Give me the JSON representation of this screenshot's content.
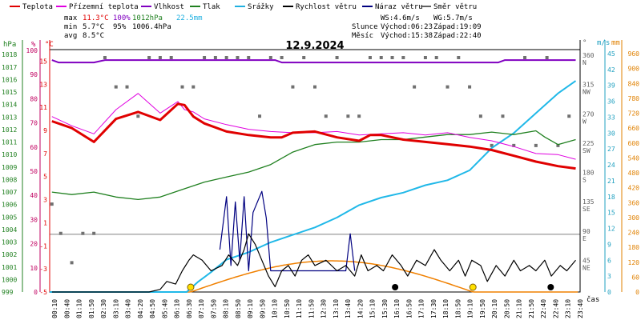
{
  "chart_data": {
    "type": "line",
    "title": "12.9.2024",
    "legend": [
      {
        "name": "Teplota",
        "color": "#e00000"
      },
      {
        "name": "Přízemní teplota",
        "color": "#e000e0"
      },
      {
        "name": "Vlhkost",
        "color": "#8000c0"
      },
      {
        "name": "Tlak",
        "color": "#208020"
      },
      {
        "name": "Srážky",
        "color": "#20b0e0"
      },
      {
        "name": "Rychlost větru",
        "color": "#000000"
      },
      {
        "name": "Náraz větru",
        "color": "#000080"
      },
      {
        "name": "Směr větru",
        "color": "#606060"
      }
    ],
    "stats": {
      "row_max": {
        "label": "max",
        "temp": "11.3°C",
        "hum": "100%",
        "pres": "1012hPa",
        "rain": "22.5mm"
      },
      "row_min": {
        "label": "min",
        "temp": "5.7°C",
        "hum": "95%",
        "pres": "1006.4hPa"
      },
      "row_avg": {
        "label": "avg",
        "temp": "8.5°C"
      },
      "wind": {
        "ws": "WS:4.6m/s",
        "wg": "WG:5.7m/s"
      },
      "sun": {
        "label": "Slunce",
        "rise": "Východ:06:23",
        "set": "Západ:19:09"
      },
      "moon": {
        "label": "Měsíc",
        "rise": "Východ:15:38",
        "set": "Západ:22:40"
      }
    },
    "axes": {
      "hpa": {
        "unit": "hPa",
        "ticks": [
          "1018",
          "1017",
          "1016",
          "1015",
          "1014",
          "1013",
          "1012",
          "1011",
          "1010",
          "1009",
          "1008",
          "1007",
          "1006",
          "1005",
          "1004",
          "1003",
          "1002",
          "1001",
          "1000",
          "999"
        ]
      },
      "pct": {
        "unit": "%",
        "ticks": [
          "100",
          "90",
          "80",
          "70",
          "60",
          "50",
          "40",
          "30",
          "20",
          "10",
          "0"
        ]
      },
      "degc": {
        "unit": "°C",
        "ticks": [
          "15",
          "13",
          "11",
          "9",
          "7",
          "5",
          "3",
          "1",
          "-1",
          "-3",
          "-5"
        ]
      },
      "dir": {
        "unit": "°",
        "ticks": [
          {
            "deg": "360",
            "name": "N"
          },
          {
            "deg": "315",
            "name": "NW"
          },
          {
            "deg": "270",
            "name": "W"
          },
          {
            "deg": "225",
            "name": "SW"
          },
          {
            "deg": "180",
            "name": "S"
          },
          {
            "deg": "135",
            "name": "SE"
          },
          {
            "deg": "90",
            "name": "E"
          },
          {
            "deg": "45",
            "name": "NE"
          }
        ]
      },
      "ms": {
        "unit": "m/s",
        "ticks": [
          "45",
          "42",
          "39",
          "36",
          "33",
          "30",
          "27",
          "24",
          "21",
          "18",
          "15",
          "12",
          "9",
          "6",
          "3",
          "0"
        ]
      },
      "mm": {
        "unit": "mm",
        "ticks": [
          "960",
          "900",
          "840",
          "780",
          "720",
          "660",
          "600",
          "540",
          "480",
          "420",
          "360",
          "300",
          "240",
          "180",
          "120",
          "60",
          "0"
        ]
      },
      "time": {
        "unit": "čas",
        "ticks": [
          "00:10",
          "00:40",
          "01:10",
          "01:50",
          "02:30",
          "03:10",
          "03:40",
          "04:20",
          "04:50",
          "05:40",
          "06:10",
          "06:30",
          "07:10",
          "07:50",
          "08:10",
          "08:50",
          "09:10",
          "09:50",
          "10:10",
          "10:50",
          "11:10",
          "11:50",
          "12:30",
          "13:10",
          "13:40",
          "14:20",
          "15:10",
          "15:30",
          "16:10",
          "16:50",
          "17:10",
          "17:30",
          "18:10",
          "18:50",
          "19:10",
          "19:50",
          "20:10",
          "20:50",
          "21:10",
          "21:50",
          "22:40",
          "22:40",
          "23:10",
          "23:40"
        ]
      }
    },
    "ylim_temp": [
      -5,
      16
    ],
    "series": [
      {
        "name": "Teplota",
        "unit": "°C",
        "x": [
          0.1,
          1,
          2,
          3,
          4,
          5,
          5.8,
          6.1,
          6.5,
          7,
          8,
          9,
          10,
          10.5,
          11,
          12,
          13,
          14,
          14.5,
          15,
          16,
          17,
          18,
          19,
          20,
          21,
          22,
          22.5,
          23,
          23.8
        ],
        "y": [
          9.8,
          9.2,
          8.0,
          10.0,
          10.6,
          9.9,
          11.3,
          11.2,
          10.2,
          9.6,
          8.9,
          8.6,
          8.4,
          8.4,
          8.8,
          8.9,
          8.4,
          8.1,
          8.6,
          8.6,
          8.2,
          8.0,
          7.8,
          7.6,
          7.3,
          6.8,
          6.3,
          6.1,
          5.9,
          5.7
        ]
      },
      {
        "name": "Přízemní teplota",
        "unit": "°C",
        "x": [
          0.1,
          1,
          2,
          3,
          4,
          5,
          5.8,
          6.1,
          6.5,
          7,
          8,
          9,
          10,
          11,
          12,
          13,
          14,
          15,
          16,
          17,
          18,
          19,
          20,
          21,
          22,
          23,
          23.8
        ],
        "y": [
          10.2,
          9.4,
          8.7,
          10.8,
          12.2,
          10.5,
          11.5,
          10.8,
          10.6,
          10.0,
          9.5,
          9.1,
          8.9,
          8.8,
          8.8,
          8.9,
          8.6,
          8.7,
          8.8,
          8.6,
          8.8,
          8.4,
          8.1,
          7.6,
          7.0,
          6.9,
          6.5
        ]
      },
      {
        "name": "Vlhkost",
        "unit": "%",
        "x": [
          0.1,
          0.4,
          2,
          2.5,
          4,
          4.2,
          10.2,
          10.5,
          20.3,
          20.6,
          23.8
        ],
        "y": [
          96,
          95,
          95,
          96,
          96,
          96,
          96,
          95,
          95,
          96,
          96
        ]
      },
      {
        "name": "Tlak",
        "unit": "hPa",
        "x": [
          0.1,
          1,
          2,
          3,
          4,
          5,
          6,
          7,
          8,
          9,
          10,
          11,
          12,
          13,
          14,
          15,
          16,
          17,
          18,
          19,
          20,
          21,
          22,
          22.4,
          23,
          23.8
        ],
        "y": [
          1007.0,
          1006.8,
          1007.0,
          1006.6,
          1006.4,
          1006.6,
          1007.2,
          1007.8,
          1008.2,
          1008.6,
          1009.2,
          1010.2,
          1010.8,
          1011.0,
          1011.0,
          1011.2,
          1011.2,
          1011.4,
          1011.6,
          1011.6,
          1011.8,
          1011.6,
          1011.9,
          1011.4,
          1010.8,
          1011.2
        ]
      },
      {
        "name": "Srážky",
        "unit": "mm",
        "x": [
          0,
          6.2,
          6.7,
          7.3,
          8,
          9,
          10,
          11,
          12,
          13,
          14,
          15,
          16,
          17,
          18,
          19,
          20,
          21,
          22,
          23,
          23.8
        ],
        "y": [
          0,
          0,
          40,
          80,
          130,
          160,
          200,
          230,
          260,
          300,
          350,
          380,
          400,
          430,
          450,
          490,
          580,
          640,
          720,
          800,
          850
        ]
      },
      {
        "name": "Rychlost větru",
        "unit": "m/s",
        "x": [
          0.1,
          4.5,
          5,
          5.3,
          5.7,
          6.0,
          6.3,
          6.5,
          6.9,
          7.3,
          7.8,
          8.1,
          8.5,
          8.8,
          9.0,
          9.3,
          9.6,
          9.9,
          10.2,
          10.5,
          10.8,
          11.1,
          11.4,
          11.7,
          12,
          12.5,
          13,
          13.4,
          13.8,
          14.1,
          14.4,
          14.8,
          15.1,
          15.5,
          15.9,
          16.2,
          16.6,
          17,
          17.4,
          17.7,
          18.1,
          18.5,
          18.8,
          19.1,
          19.5,
          19.8,
          20.2,
          20.6,
          21,
          21.3,
          21.7,
          22,
          22.4,
          22.7,
          23.1,
          23.4,
          23.8
        ],
        "y": [
          0,
          0,
          0.5,
          2,
          1.5,
          4,
          6,
          7,
          6,
          4,
          5,
          7,
          5,
          8,
          11,
          9,
          6,
          3,
          1,
          4,
          5,
          3,
          6,
          7,
          5,
          6,
          4,
          5,
          3,
          7,
          4,
          5,
          4,
          7,
          5,
          3,
          6,
          5,
          8,
          6,
          4,
          6,
          3,
          6,
          5,
          2,
          5,
          3,
          6,
          4,
          5,
          4,
          6,
          3,
          5,
          4,
          6
        ]
      },
      {
        "name": "Náraz větru",
        "unit": "m/s",
        "x": [
          7.7,
          8.0,
          8.2,
          8.4,
          8.6,
          8.8,
          9.0,
          9.2,
          9.4,
          9.6,
          9.8,
          10.0,
          13.4,
          13.6,
          13.8
        ],
        "y": [
          8,
          18,
          5,
          17,
          6,
          18,
          4,
          15,
          17,
          19,
          14,
          4,
          4,
          11,
          4
        ]
      },
      {
        "name": "Směr větru",
        "unit": "°",
        "x": [
          0.1,
          0.5,
          1,
          1.5,
          2,
          2.5,
          3,
          3.5,
          4,
          4.5,
          5,
          5.5,
          6,
          6.5,
          7,
          7.5,
          8,
          8.5,
          9,
          9.5,
          10,
          10.5,
          11,
          11.5,
          12,
          12.5,
          13,
          13.5,
          14,
          14.5,
          15,
          15.5,
          16,
          16.5,
          17,
          17.5,
          18,
          18.5,
          19,
          19.5,
          20,
          20.5,
          21,
          21.5,
          22,
          22.5,
          23,
          23.5
        ],
        "y": [
          135,
          90,
          45,
          90,
          90,
          360,
          315,
          315,
          270,
          360,
          360,
          360,
          315,
          315,
          360,
          360,
          360,
          360,
          360,
          270,
          360,
          360,
          315,
          360,
          315,
          270,
          360,
          270,
          270,
          360,
          360,
          360,
          360,
          315,
          360,
          360,
          315,
          360,
          315,
          270,
          225,
          270,
          225,
          360,
          225,
          360,
          225,
          270
        ]
      }
    ],
    "sun_curve": {
      "rise_h": 6.38,
      "set_h": 19.15,
      "peak": 2.7
    },
    "grid": false,
    "legend_position": "top"
  }
}
